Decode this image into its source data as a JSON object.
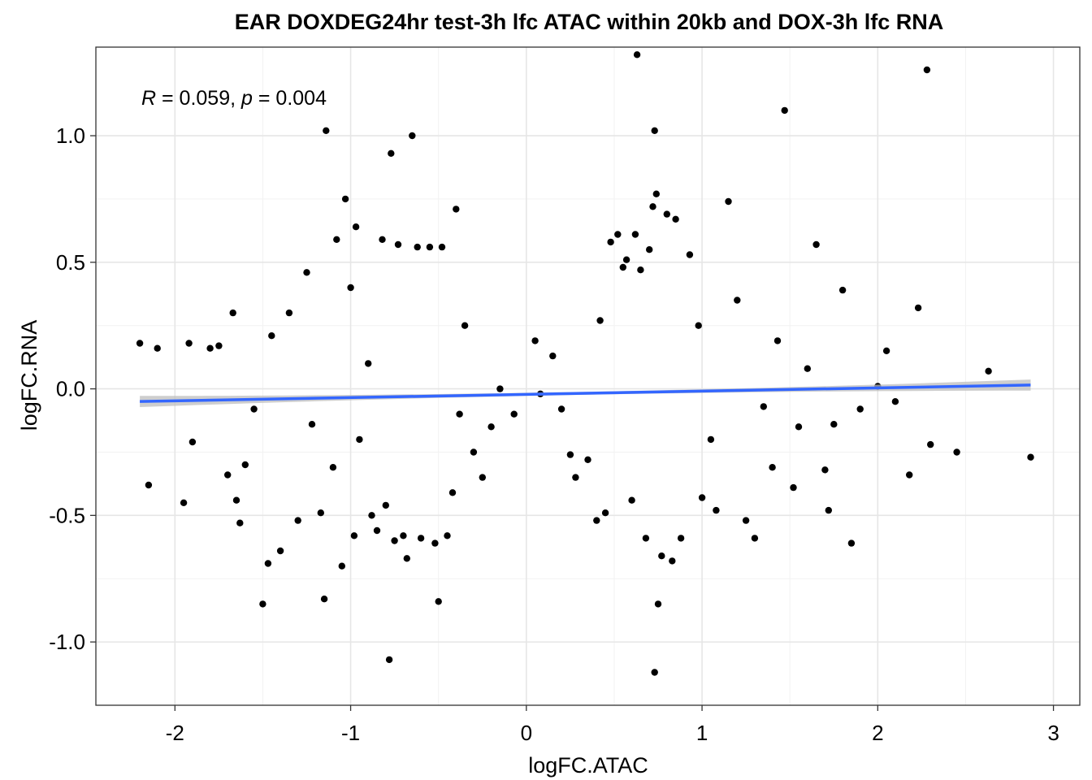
{
  "chart_data": {
    "type": "scatter",
    "title": "EAR DOXDEG24hr test-3h lfc ATAC within 20kb and DOX-3h lfc RNA",
    "xlabel": "logFC.ATAC",
    "ylabel": "logFC.RNA",
    "xlim": [
      -2.45,
      3.15
    ],
    "ylim": [
      -1.25,
      1.35
    ],
    "x_ticks": [
      -2,
      -1,
      0,
      1,
      2,
      3
    ],
    "x_tick_labels": [
      "-2",
      "-1",
      "0",
      "1",
      "2",
      "3"
    ],
    "y_ticks": [
      -1.0,
      -0.5,
      0.0,
      0.5,
      1.0
    ],
    "y_tick_labels": [
      "-1.0",
      "-0.5",
      "0.0",
      "0.5",
      "1.0"
    ],
    "grid": true,
    "annotation": {
      "r_symbol": "R",
      "r_value": " = 0.059, ",
      "p_symbol": "p",
      "p_value": " = 0.004"
    },
    "point_color": "#000000",
    "fit_color": "#3366FF",
    "ci_color": "#BEBEBE",
    "fit_line": {
      "x": [
        -2.2,
        2.87
      ],
      "y": [
        -0.05,
        0.015
      ]
    },
    "fit_ci_halfwidth": {
      "ends": 0.022,
      "middle": 0.006
    },
    "points": [
      [
        -2.2,
        0.18
      ],
      [
        -2.15,
        -0.38
      ],
      [
        -2.1,
        0.16
      ],
      [
        -1.95,
        -0.45
      ],
      [
        -1.92,
        0.18
      ],
      [
        -1.9,
        -0.21
      ],
      [
        -1.8,
        0.16
      ],
      [
        -1.75,
        0.17
      ],
      [
        -1.7,
        -0.34
      ],
      [
        -1.67,
        0.3
      ],
      [
        -1.65,
        -0.44
      ],
      [
        -1.63,
        -0.53
      ],
      [
        -1.6,
        -0.3
      ],
      [
        -1.55,
        -0.08
      ],
      [
        -1.5,
        -0.85
      ],
      [
        -1.47,
        -0.69
      ],
      [
        -1.45,
        0.21
      ],
      [
        -1.4,
        -0.64
      ],
      [
        -1.35,
        0.3
      ],
      [
        -1.3,
        -0.52
      ],
      [
        -1.25,
        0.46
      ],
      [
        -1.22,
        -0.14
      ],
      [
        -1.17,
        -0.49
      ],
      [
        -1.15,
        -0.83
      ],
      [
        -1.14,
        1.02
      ],
      [
        -1.1,
        -0.31
      ],
      [
        -1.08,
        0.59
      ],
      [
        -1.05,
        -0.7
      ],
      [
        -1.03,
        0.75
      ],
      [
        -1.0,
        0.4
      ],
      [
        -0.98,
        -0.58
      ],
      [
        -0.97,
        0.64
      ],
      [
        -0.95,
        -0.2
      ],
      [
        -0.9,
        0.1
      ],
      [
        -0.88,
        -0.5
      ],
      [
        -0.85,
        -0.56
      ],
      [
        -0.82,
        0.59
      ],
      [
        -0.8,
        -0.46
      ],
      [
        -0.78,
        -1.07
      ],
      [
        -0.77,
        0.93
      ],
      [
        -0.75,
        -0.6
      ],
      [
        -0.73,
        0.57
      ],
      [
        -0.7,
        -0.58
      ],
      [
        -0.68,
        -0.67
      ],
      [
        -0.65,
        1.0
      ],
      [
        -0.62,
        0.56
      ],
      [
        -0.6,
        -0.59
      ],
      [
        -0.55,
        0.56
      ],
      [
        -0.52,
        -0.61
      ],
      [
        -0.5,
        -0.84
      ],
      [
        -0.48,
        0.56
      ],
      [
        -0.45,
        -0.58
      ],
      [
        -0.42,
        -0.41
      ],
      [
        -0.4,
        0.71
      ],
      [
        -0.38,
        -0.1
      ],
      [
        -0.35,
        0.25
      ],
      [
        -0.3,
        -0.25
      ],
      [
        -0.25,
        -0.35
      ],
      [
        -0.2,
        -0.15
      ],
      [
        -0.15,
        0.0
      ],
      [
        -0.07,
        -0.1
      ],
      [
        0.05,
        0.19
      ],
      [
        0.08,
        -0.02
      ],
      [
        0.15,
        0.13
      ],
      [
        0.2,
        -0.08
      ],
      [
        0.25,
        -0.26
      ],
      [
        0.28,
        -0.35
      ],
      [
        0.35,
        -0.28
      ],
      [
        0.4,
        -0.52
      ],
      [
        0.42,
        0.27
      ],
      [
        0.45,
        -0.49
      ],
      [
        0.48,
        0.58
      ],
      [
        0.52,
        0.61
      ],
      [
        0.55,
        0.48
      ],
      [
        0.57,
        0.51
      ],
      [
        0.6,
        -0.44
      ],
      [
        0.62,
        0.61
      ],
      [
        0.63,
        1.32
      ],
      [
        0.65,
        0.47
      ],
      [
        0.68,
        -0.59
      ],
      [
        0.7,
        0.55
      ],
      [
        0.72,
        0.72
      ],
      [
        0.73,
        1.02
      ],
      [
        0.74,
        0.77
      ],
      [
        0.75,
        -0.85
      ],
      [
        0.73,
        -1.12
      ],
      [
        0.77,
        -0.66
      ],
      [
        0.8,
        0.69
      ],
      [
        0.83,
        -0.68
      ],
      [
        0.85,
        0.67
      ],
      [
        0.88,
        -0.59
      ],
      [
        0.93,
        0.53
      ],
      [
        0.98,
        0.25
      ],
      [
        1.0,
        -0.43
      ],
      [
        1.05,
        -0.2
      ],
      [
        1.08,
        -0.48
      ],
      [
        1.15,
        0.74
      ],
      [
        1.2,
        0.35
      ],
      [
        1.25,
        -0.52
      ],
      [
        1.3,
        -0.59
      ],
      [
        1.35,
        -0.07
      ],
      [
        1.4,
        -0.31
      ],
      [
        1.43,
        0.19
      ],
      [
        1.47,
        1.1
      ],
      [
        1.52,
        -0.39
      ],
      [
        1.55,
        -0.15
      ],
      [
        1.6,
        0.08
      ],
      [
        1.65,
        0.57
      ],
      [
        1.7,
        -0.32
      ],
      [
        1.72,
        -0.48
      ],
      [
        1.75,
        -0.14
      ],
      [
        1.8,
        0.39
      ],
      [
        1.85,
        -0.61
      ],
      [
        1.9,
        -0.08
      ],
      [
        2.0,
        0.01
      ],
      [
        2.05,
        0.15
      ],
      [
        2.1,
        -0.05
      ],
      [
        2.18,
        -0.34
      ],
      [
        2.23,
        0.32
      ],
      [
        2.28,
        1.26
      ],
      [
        2.3,
        -0.22
      ],
      [
        2.45,
        -0.25
      ],
      [
        2.63,
        0.07
      ],
      [
        2.87,
        -0.27
      ]
    ]
  }
}
